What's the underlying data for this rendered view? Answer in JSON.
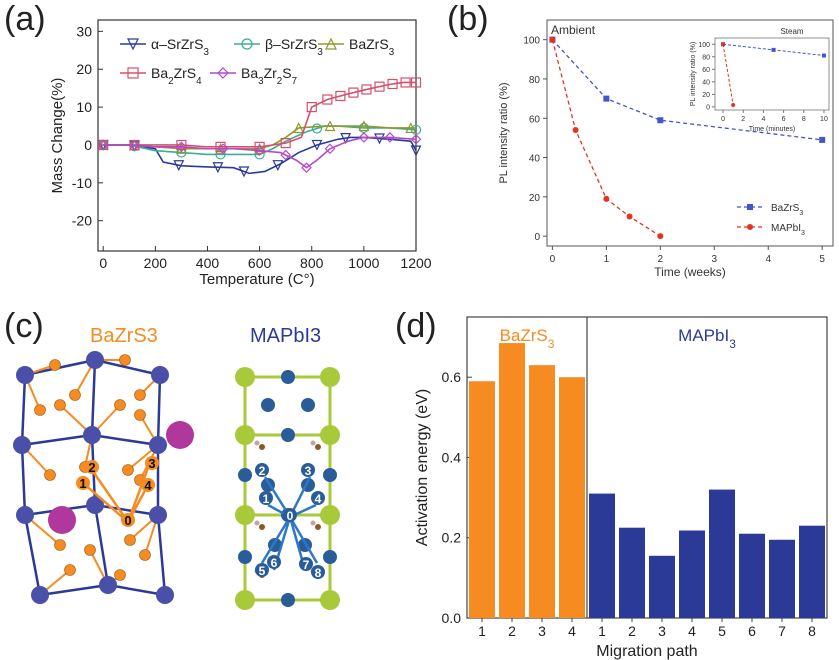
{
  "panel_labels": {
    "a": "(a)",
    "b": "(b)",
    "c": "(c)",
    "d": "(d)"
  },
  "colors": {
    "orange": "#F58B21",
    "navy": "#2B3A97",
    "blue_series": "#4455CC",
    "red_series": "#E53222"
  },
  "structure_titles": {
    "left": "BaZrS3",
    "right": "MAPbI3"
  },
  "structure_icons": [
    "bazrs3-crystal-structure",
    "mapbi3-crystal-structure"
  ],
  "chart_data": [
    {
      "id": "a",
      "type": "line",
      "title": "",
      "xlabel": "Temperature (C°)",
      "ylabel": "Mass Change(%)",
      "xlim": [
        -20,
        1200
      ],
      "ylim": [
        -28,
        33
      ],
      "xticks": [
        0,
        200,
        400,
        600,
        800,
        1000,
        1200
      ],
      "yticks": [
        -20,
        -10,
        0,
        10,
        20,
        30
      ],
      "series": [
        {
          "name": "α–SrZrS3",
          "color": "#2B3A97",
          "marker": "triangle-down",
          "x": [
            0,
            100,
            200,
            230,
            300,
            400,
            500,
            560,
            620,
            680,
            750,
            820,
            900,
            950,
            1000,
            1100,
            1180,
            1200
          ],
          "y": [
            0,
            0,
            -1,
            -4.5,
            -5.5,
            -5.8,
            -6,
            -7.5,
            -7,
            -5,
            -2,
            0,
            1.5,
            2,
            2,
            1.5,
            1,
            -1.5
          ],
          "marker_x": [
            0,
            120,
            290,
            440,
            540,
            670,
            820,
            930,
            1060,
            1200
          ]
        },
        {
          "name": "β–SrZrS3",
          "color": "#3AAE9A",
          "marker": "circle",
          "x": [
            0,
            100,
            200,
            300,
            400,
            500,
            600,
            650,
            700,
            780,
            850,
            900,
            1000,
            1100,
            1200
          ],
          "y": [
            0,
            0,
            -1.5,
            -2,
            -2.5,
            -2.5,
            -2.5,
            -1,
            1,
            3.5,
            5,
            5,
            4.5,
            4.5,
            4
          ],
          "marker_x": [
            0,
            120,
            300,
            450,
            600,
            820,
            1000,
            1200
          ]
        },
        {
          "name": "BaZrS3",
          "color": "#8E9A2A",
          "marker": "triangle-up",
          "x": [
            0,
            100,
            200,
            300,
            400,
            500,
            600,
            650,
            700,
            750,
            850,
            1000,
            1100,
            1200
          ],
          "y": [
            0,
            0,
            -0.5,
            -1,
            -1,
            -1,
            -1,
            0,
            2,
            4.5,
            5,
            5,
            4.5,
            4.5
          ],
          "marker_x": [
            0,
            120,
            300,
            450,
            600,
            750,
            870,
            1000,
            1180
          ]
        },
        {
          "name": "Ba2ZrS4",
          "color": "#D7506A",
          "marker": "square",
          "x": [
            0,
            100,
            200,
            300,
            400,
            500,
            600,
            700,
            760,
            800,
            860,
            940,
            1000,
            1100,
            1150,
            1200
          ],
          "y": [
            0,
            0,
            0,
            0,
            -0.5,
            -0.5,
            -0.5,
            0.5,
            2,
            10,
            12,
            13.5,
            14.5,
            16,
            16.5,
            16.5
          ],
          "marker_x": [
            0,
            120,
            300,
            450,
            600,
            700,
            800,
            860,
            910,
            960,
            1010,
            1060,
            1110,
            1160,
            1200
          ]
        },
        {
          "name": "Ba3Zr2S7",
          "color": "#B24AC9",
          "marker": "diamond",
          "x": [
            0,
            100,
            200,
            300,
            400,
            500,
            600,
            680,
            740,
            780,
            820,
            870,
            940,
            1000,
            1100,
            1200
          ],
          "y": [
            0,
            0,
            -0.5,
            -0.5,
            -1,
            -1,
            -1.5,
            -2,
            -4,
            -6,
            -4,
            -1,
            1,
            2,
            2,
            1.5
          ],
          "marker_x": [
            0,
            120,
            300,
            460,
            600,
            700,
            780,
            870,
            1000,
            1100,
            1200
          ]
        }
      ]
    },
    {
      "id": "b",
      "type": "line",
      "title": "Ambient",
      "xlabel": "Time (weeks)",
      "ylabel": "PL intensity ratio (%)",
      "xlim": [
        -0.1,
        5.2
      ],
      "ylim": [
        -5,
        110
      ],
      "xticks": [
        0,
        1,
        2,
        3,
        4,
        5
      ],
      "yticks": [
        0,
        20,
        40,
        60,
        80,
        100
      ],
      "series": [
        {
          "name": "BaZrS3",
          "color": "#4455CC",
          "marker": "square",
          "x": [
            0,
            1,
            2,
            5
          ],
          "y": [
            100,
            70,
            59,
            49
          ]
        },
        {
          "name": "MAPbI3",
          "color": "#E53222",
          "marker": "circle",
          "x": [
            0,
            0.43,
            1,
            1.43,
            2
          ],
          "y": [
            100,
            54,
            19,
            10,
            0
          ]
        }
      ],
      "inset": {
        "title": "Steam",
        "xlabel": "Time (minutes)",
        "ylabel": "PL intensity ratio (%)",
        "xlim": [
          -0.8,
          10.5
        ],
        "ylim": [
          -5,
          110
        ],
        "xticks": [
          0,
          2,
          4,
          6,
          8,
          10
        ],
        "yticks": [
          0,
          20,
          40,
          60,
          80,
          100
        ],
        "series": [
          {
            "name": "BaZrS3",
            "color": "#4455CC",
            "marker": "square",
            "x": [
              0,
              5,
              10
            ],
            "y": [
              100,
              91,
              82
            ]
          },
          {
            "name": "MAPbI3",
            "color": "#E53222",
            "marker": "circle",
            "x": [
              0,
              1
            ],
            "y": [
              100,
              3
            ]
          }
        ]
      }
    },
    {
      "id": "d",
      "type": "bar",
      "title": "",
      "xlabel": "Migration path",
      "ylabel": "Activation energy (eV)",
      "ylim": [
        0,
        0.75
      ],
      "yticks": [
        0.0,
        0.2,
        0.4,
        0.6
      ],
      "groups": [
        {
          "name": "BaZrS3",
          "color": "#F58B21",
          "categories": [
            "1",
            "2",
            "3",
            "4"
          ],
          "values": [
            0.59,
            0.685,
            0.63,
            0.6
          ]
        },
        {
          "name": "MAPbI3",
          "color": "#2B3A97",
          "categories": [
            "1",
            "2",
            "3",
            "4",
            "5",
            "6",
            "7",
            "8"
          ],
          "values": [
            0.31,
            0.225,
            0.155,
            0.218,
            0.32,
            0.21,
            0.195,
            0.23
          ]
        }
      ]
    }
  ]
}
